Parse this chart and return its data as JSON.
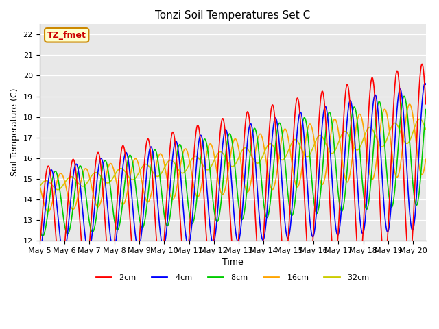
{
  "title": "Tonzi Soil Temperatures Set C",
  "xlabel": "Time",
  "ylabel": "Soil Temperature (C)",
  "ylim": [
    12.0,
    22.5
  ],
  "xlim": [
    0,
    15.5
  ],
  "background_color": "#e8e8e8",
  "series_colors": {
    "-2cm": "#ff0000",
    "-4cm": "#0000ff",
    "-8cm": "#00cc00",
    "-16cm": "#ffa500",
    "-32cm": "#cccc00"
  },
  "legend_label": "TZ_fmet",
  "legend_label_color": "#cc0000",
  "legend_box_color": "#ffffcc",
  "legend_box_edge": "#cc8800",
  "x_tick_labels": [
    "May 5",
    "May 6",
    "May 7",
    "May 8",
    "May 9",
    "May 10",
    "May 11",
    "May 12",
    "May 13",
    "May 14",
    "May 15",
    "May 16",
    "May 17",
    "May 18",
    "May 19",
    "May 20"
  ],
  "series_lw": 1.2
}
